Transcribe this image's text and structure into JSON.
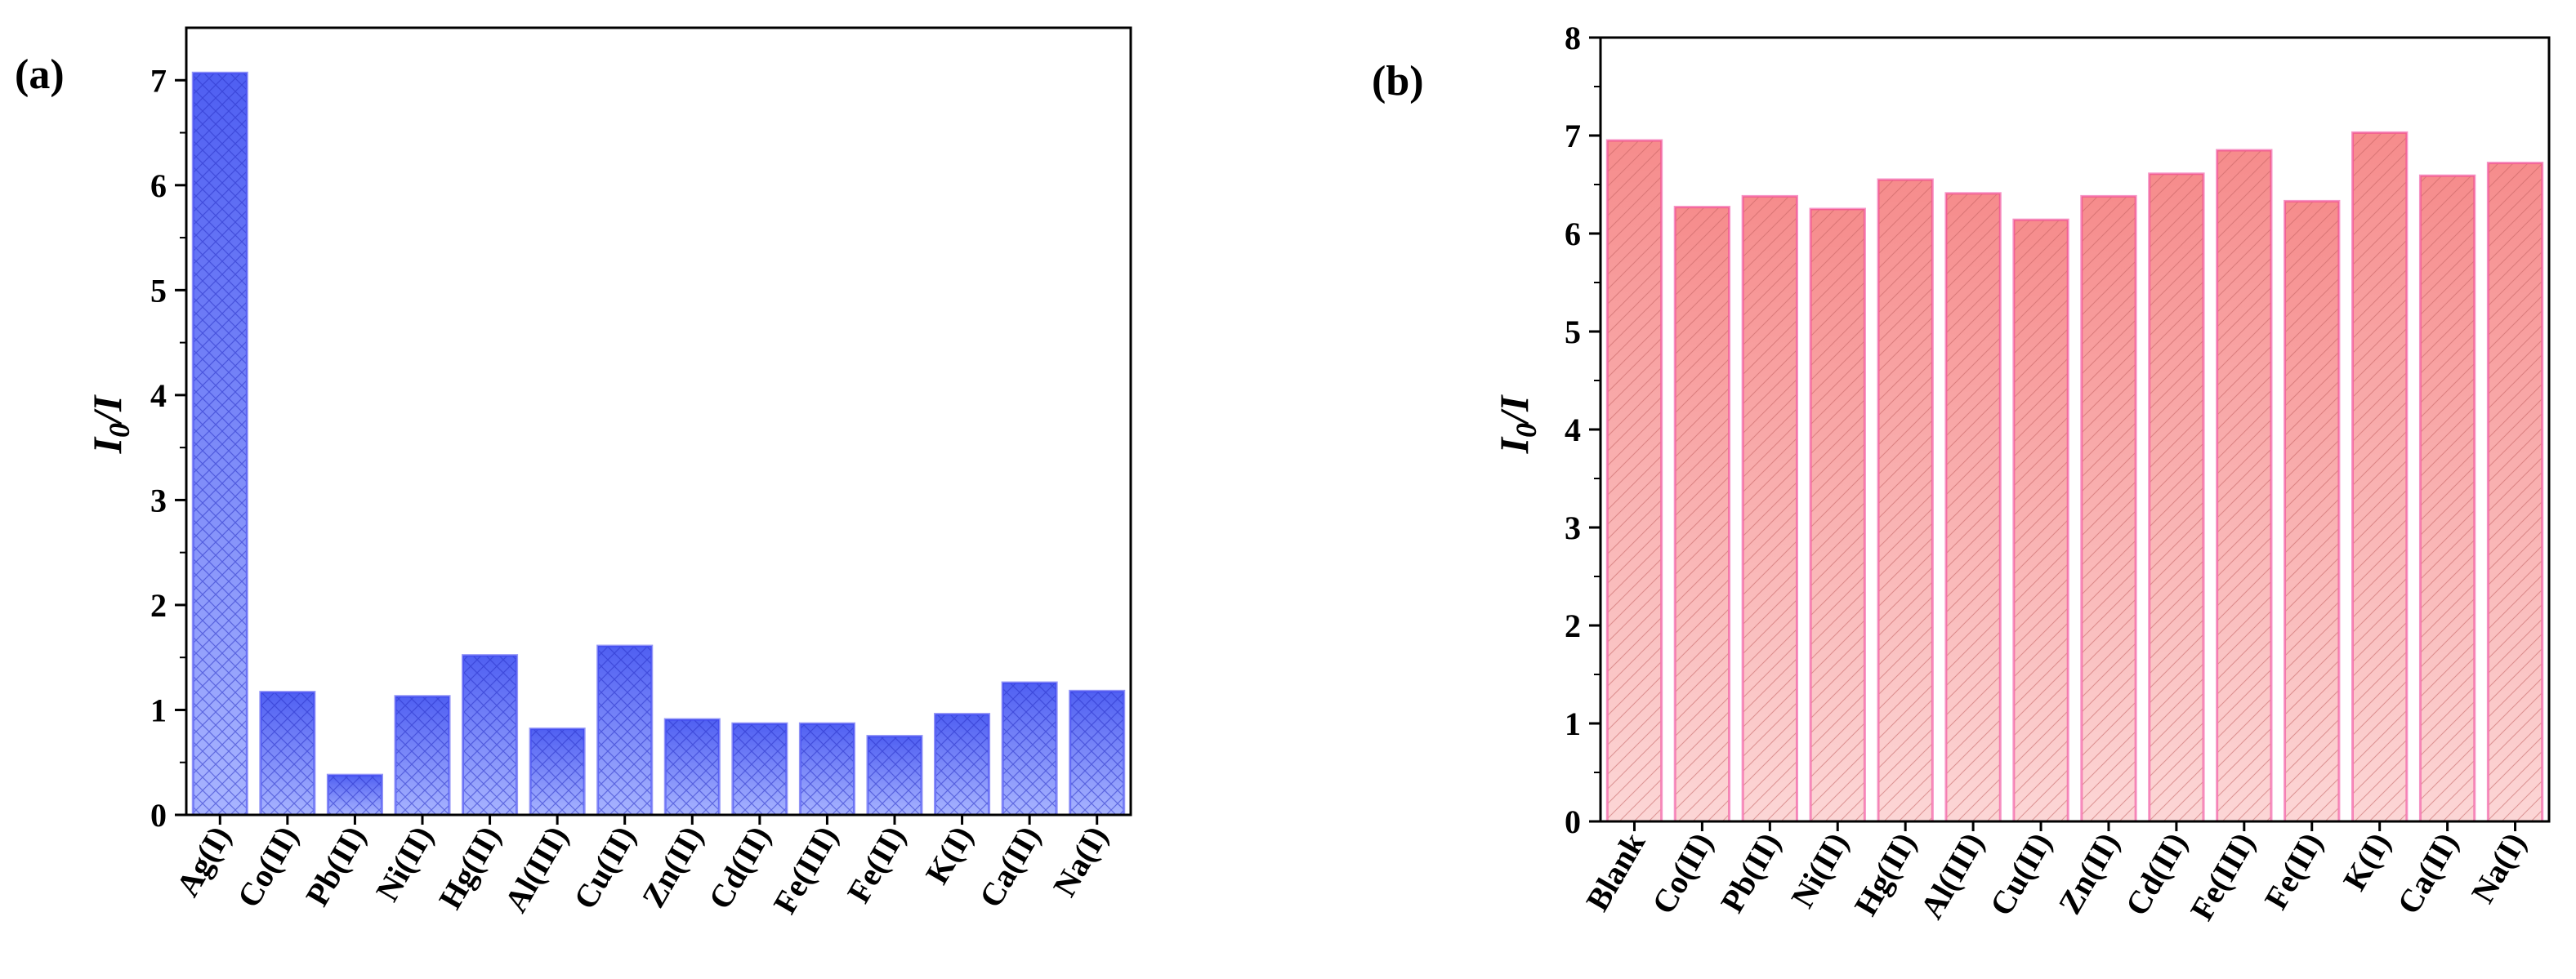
{
  "chart_data": [
    {
      "panel_label": "(a)",
      "type": "bar",
      "ylabel_main": "I",
      "ylabel_sub": "0",
      "ylabel_rest": "/I",
      "ylim": [
        0,
        7.5
      ],
      "yticks": [
        0,
        1,
        2,
        3,
        4,
        5,
        6,
        7
      ],
      "categories": [
        "Ag(I)",
        "Co(II)",
        "Pb(II)",
        "Ni(II)",
        "Hg(II)",
        "Al(III)",
        "Cu(II)",
        "Zn(II)",
        "Cd(II)",
        "Fe(III)",
        "Fe(II)",
        "K(I)",
        "Ca(II)",
        "Na(I)"
      ],
      "values": [
        7.07,
        1.17,
        0.38,
        1.13,
        1.52,
        0.82,
        1.61,
        0.91,
        0.87,
        0.87,
        0.75,
        0.96,
        1.26,
        1.18
      ],
      "fill_colors": [
        "#a8b4ff",
        "#4f5ff2"
      ],
      "stroke_color": "#3a3ff0",
      "hatch_color": "#2a32c8",
      "hatch": "crosshatch"
    },
    {
      "panel_label": "(b)",
      "type": "bar",
      "ylabel_main": "I",
      "ylabel_sub": "0",
      "ylabel_rest": "/I",
      "ylim": [
        0,
        8
      ],
      "yticks": [
        0,
        1,
        2,
        3,
        4,
        5,
        6,
        7,
        8
      ],
      "categories": [
        "Blank",
        "Co(II)",
        "Pb(II)",
        "Ni(II)",
        "Hg(II)",
        "Al(III)",
        "Cu(II)",
        "Zn(II)",
        "Cd(II)",
        "Fe(III)",
        "Fe(II)",
        "K(I)",
        "Ca(II)",
        "Na(I)"
      ],
      "values": [
        6.95,
        6.27,
        6.38,
        6.25,
        6.55,
        6.41,
        6.14,
        6.38,
        6.61,
        6.85,
        6.33,
        7.03,
        6.59,
        6.72
      ],
      "fill_colors": [
        "#fcd6d6",
        "#f68c8c"
      ],
      "stroke_color": "#f03c96",
      "hatch_color": "#c46262",
      "hatch": "diagonal"
    }
  ]
}
